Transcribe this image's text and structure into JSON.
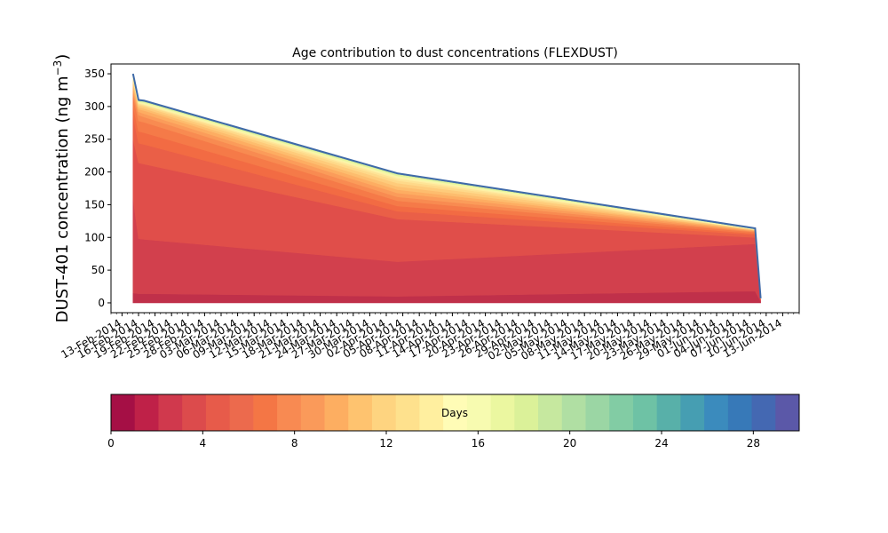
{
  "chart_data": {
    "type": "area",
    "title": "Age contribution to dust concentrations (FLEXDUST)",
    "ylabel_main": "DUST-401 concentration (ng m",
    "ylabel_sup": "−3",
    "ylabel_close": ")",
    "xlabel": "",
    "ylim": [
      -15,
      365
    ],
    "yticks": [
      "0",
      "50",
      "100",
      "150",
      "200",
      "250",
      "300",
      "350"
    ],
    "xlim": [
      "2014-02-11",
      "2014-06-16"
    ],
    "xtick_dates": [
      "2014-02-13",
      "2014-02-16",
      "2014-02-19",
      "2014-02-22",
      "2014-02-25",
      "2014-02-28",
      "2014-03-03",
      "2014-03-06",
      "2014-03-09",
      "2014-03-12",
      "2014-03-15",
      "2014-03-18",
      "2014-03-21",
      "2014-03-24",
      "2014-03-27",
      "2014-03-30",
      "2014-04-02",
      "2014-04-05",
      "2014-04-08",
      "2014-04-11",
      "2014-04-14",
      "2014-04-17",
      "2014-04-20",
      "2014-04-23",
      "2014-04-26",
      "2014-04-29",
      "2014-05-02",
      "2014-05-05",
      "2014-05-08",
      "2014-05-11",
      "2014-05-14",
      "2014-05-17",
      "2014-05-20",
      "2014-05-23",
      "2014-05-26",
      "2014-05-29",
      "2014-06-01",
      "2014-06-04",
      "2014-06-07",
      "2014-06-10",
      "2014-06-13"
    ],
    "xticks": [
      "13-Feb-2014",
      "16-Feb-2014",
      "19-Feb-2014",
      "22-Feb-2014",
      "25-Feb-2014",
      "28-Feb-2014",
      "03-Mar-2014",
      "06-Mar-2014",
      "09-Mar-2014",
      "12-Mar-2014",
      "15-Mar-2014",
      "18-Mar-2014",
      "21-Mar-2014",
      "24-Mar-2014",
      "27-Mar-2014",
      "30-Mar-2014",
      "02-Apr-2014",
      "05-Apr-2014",
      "08-Apr-2014",
      "11-Apr-2014",
      "14-Apr-2014",
      "17-Apr-2014",
      "20-Apr-2014",
      "23-Apr-2014",
      "26-Apr-2014",
      "29-Apr-2014",
      "02-May-2014",
      "05-May-2014",
      "08-May-2014",
      "11-May-2014",
      "14-May-2014",
      "17-May-2014",
      "20-May-2014",
      "23-May-2014",
      "26-May-2014",
      "29-May-2014",
      "01-Jun-2014",
      "04-Jun-2014",
      "07-Jun-2014",
      "10-Jun-2014",
      "13-Jun-2014"
    ],
    "x": [
      "2014-02-15",
      "2014-02-16",
      "2014-02-17",
      "2014-04-04",
      "2014-06-08",
      "2014-06-09"
    ],
    "cumulative_boundaries": [
      [
        0,
        0,
        0,
        0,
        0,
        0
      ],
      [
        15,
        14,
        14,
        10,
        18,
        2
      ],
      [
        160,
        98,
        97,
        63,
        90,
        4
      ],
      [
        250,
        214,
        212,
        128,
        100,
        5
      ],
      [
        285,
        244,
        242,
        140,
        104,
        5
      ],
      [
        300,
        262,
        260,
        148,
        106,
        5
      ],
      [
        315,
        278,
        276,
        156,
        108,
        6
      ],
      [
        320,
        287,
        284,
        162,
        109,
        6
      ],
      [
        325,
        292,
        289,
        168,
        110,
        6
      ],
      [
        330,
        296,
        294,
        173,
        111,
        6
      ],
      [
        335,
        299,
        297,
        178,
        111,
        7
      ],
      [
        338,
        302,
        300,
        183,
        112,
        7
      ],
      [
        341,
        304,
        302,
        187,
        112,
        7
      ],
      [
        343,
        305,
        303,
        190,
        112,
        7
      ],
      [
        345,
        306,
        304,
        192,
        112,
        7
      ],
      [
        347,
        307,
        306,
        194,
        113,
        7
      ],
      [
        348,
        308,
        307,
        196,
        113,
        7
      ],
      [
        349,
        309,
        308,
        197,
        113,
        7
      ],
      [
        350,
        310,
        309,
        198,
        114,
        7
      ]
    ],
    "layer_colors": [
      "#c0304a",
      "#d2404d",
      "#e04e4a",
      "#ea5f47",
      "#f26b43",
      "#f57a48",
      "#f88b51",
      "#fb9c5a",
      "#fdad62",
      "#fdbd6e",
      "#fecb7b",
      "#fed98a",
      "#fee497",
      "#ffefa5",
      "#f7f7a9",
      "#e5f49c",
      "#d0ec9c",
      "#4a78b0"
    ],
    "total_line_color": "#3f6aa8",
    "colorbar": {
      "label": "Days",
      "range": [
        0,
        30
      ],
      "ticks": [
        "0",
        "4",
        "8",
        "12",
        "16",
        "20",
        "24",
        "28"
      ],
      "colors": [
        "#a50f45",
        "#bf2148",
        "#d0394d",
        "#dc4b4c",
        "#e75b4a",
        "#ec6a4d",
        "#f47645",
        "#f88a52",
        "#fa9a5a",
        "#fdae61",
        "#fec36f",
        "#fed480",
        "#fee18d",
        "#ffef9f",
        "#fffcb6",
        "#f7fbb0",
        "#ebf7a0",
        "#dbf199",
        "#c6e89f",
        "#b0dfa3",
        "#9bd6a4",
        "#82cca4",
        "#6ec2a5",
        "#58b0a9",
        "#469eb2",
        "#3b8bbd",
        "#3779b8",
        "#4468b2",
        "#5b58a8"
      ]
    }
  }
}
